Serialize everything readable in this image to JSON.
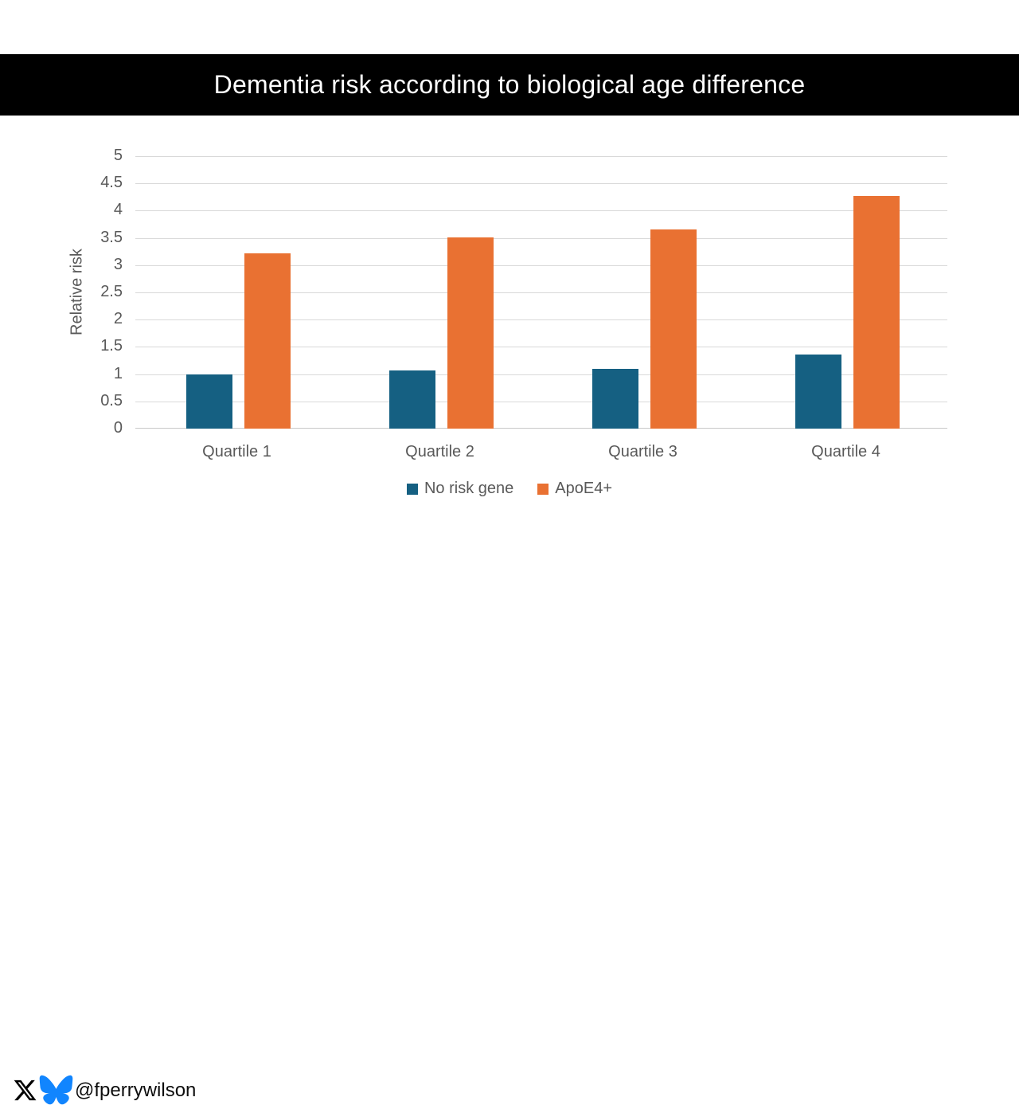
{
  "title_banner": {
    "text": "Dementia risk according to biological age difference",
    "bg_color": "#000000",
    "text_color": "#ffffff"
  },
  "chart_data": {
    "type": "bar",
    "title": "Dementia risk according to biological age difference",
    "categories": [
      "Quartile 1",
      "Quartile 2",
      "Quartile 3",
      "Quartile 4"
    ],
    "series": [
      {
        "name": "No risk gene",
        "color": "#156082",
        "values": [
          1.0,
          1.07,
          1.1,
          1.36
        ]
      },
      {
        "name": "ApoE4+",
        "color": "#E97132",
        "values": [
          3.22,
          3.51,
          3.65,
          4.27
        ]
      }
    ],
    "xlabel": "",
    "ylabel": "Relative risk",
    "ylim": [
      0,
      5
    ],
    "ytick_step": 0.5,
    "yticks": [
      "5",
      "4.5",
      "4",
      "3.5",
      "3",
      "2.5",
      "2",
      "1.5",
      "1",
      "0.5",
      "0"
    ],
    "grid": true,
    "gridline_color": "#d9d9d9",
    "axis_text_color": "#595959",
    "legend_position": "bottom"
  },
  "footer": {
    "handle": "@fperrywilson",
    "x_icon_color": "#000000",
    "butterfly_color": "#1185FE"
  }
}
